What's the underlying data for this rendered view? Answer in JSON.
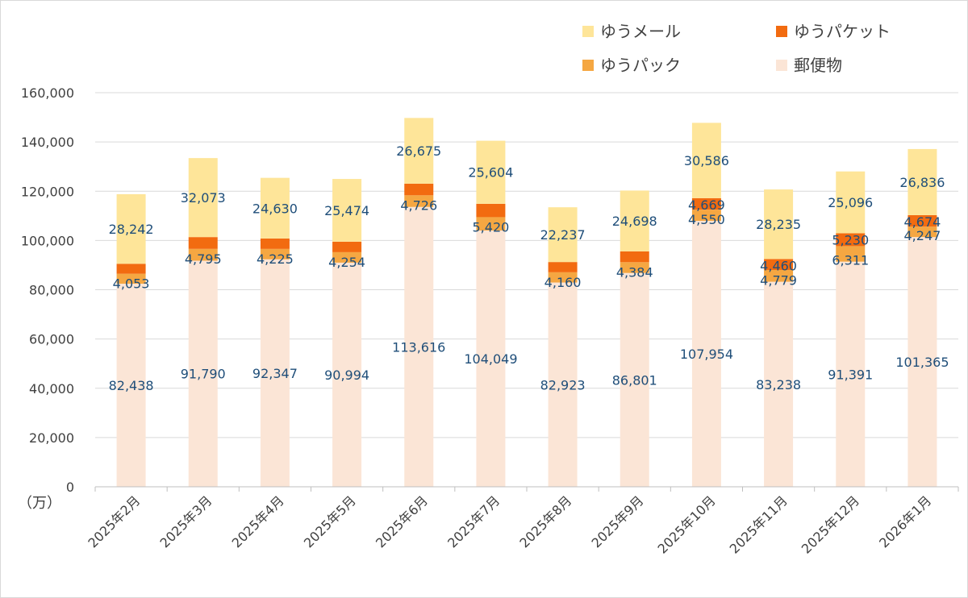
{
  "chart_data": {
    "type": "bar",
    "stacked": true,
    "unit_label": "（万）",
    "categories": [
      "2025年2月",
      "2025年3月",
      "2025年4月",
      "2025年5月",
      "2025年6月",
      "2025年7月",
      "2025年8月",
      "2025年9月",
      "2025年10月",
      "2025年11月",
      "2025年12月",
      "2026年1月"
    ],
    "series": [
      {
        "name": "郵便物",
        "color": "#fbe5d6",
        "values": [
          82438,
          91790,
          92347,
          90994,
          113616,
          104049,
          82923,
          86801,
          107954,
          83238,
          91391,
          101365
        ]
      },
      {
        "name": "ゆうパック",
        "color": "#f5a742",
        "values": [
          4053,
          4795,
          4225,
          4254,
          4726,
          5420,
          4160,
          4384,
          4550,
          4779,
          6311,
          4247
        ]
      },
      {
        "name": "ゆうパケット",
        "color": "#f26b10",
        "values": [
          4053,
          4795,
          4225,
          4254,
          4726,
          5420,
          4160,
          4384,
          4669,
          4460,
          5230,
          4674
        ]
      },
      {
        "name": "ゆうメール",
        "color": "#fee599",
        "values": [
          28242,
          32073,
          24630,
          25474,
          26675,
          25604,
          22237,
          24698,
          30586,
          28235,
          25096,
          26836
        ]
      }
    ],
    "data_labels": {
      "郵便物": [
        "82,438",
        "91,790",
        "92,347",
        "90,994",
        "113,616",
        "104,049",
        "82,923",
        "86,801",
        "107,954",
        "83,238",
        "91,391",
        "101,365"
      ],
      "ゆうパック": [
        "",
        "",
        "",
        "",
        "",
        "",
        "",
        "",
        "4,550",
        "4,779",
        "6,311",
        "4,247"
      ],
      "ゆうパケット": [
        "4,053",
        "4,795",
        "4,225",
        "4,254",
        "4,726",
        "5,420",
        "4,160",
        "4,384",
        "4,669",
        "4,460",
        "5,230",
        "4,674"
      ],
      "ゆうメール": [
        "28,242",
        "32,073",
        "24,630",
        "25,474",
        "26,675",
        "25,604",
        "22,237",
        "24,698",
        "30,586",
        "28,235",
        "25,096",
        "26,836"
      ]
    },
    "yticks": [
      "0",
      "20,000",
      "40,000",
      "60,000",
      "80,000",
      "100,000",
      "120,000",
      "140,000",
      "160,000"
    ],
    "ylim": [
      0,
      160000
    ],
    "grid": true,
    "legend_position": "top-right",
    "legend": [
      {
        "name": "ゆうメール",
        "color": "#fee599"
      },
      {
        "name": "ゆうパケット",
        "color": "#f26b10"
      },
      {
        "name": "ゆうパック",
        "color": "#f5a742"
      },
      {
        "name": "郵便物",
        "color": "#fbe5d6"
      }
    ],
    "label_color": "#1f4e79",
    "grid_color": "#d9d9d9"
  }
}
